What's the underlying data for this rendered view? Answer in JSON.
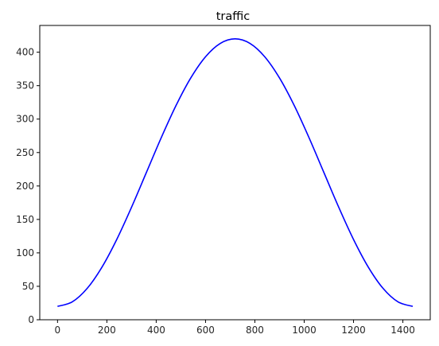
{
  "chart_data": {
    "type": "line",
    "title": "traffic",
    "xlabel": "",
    "ylabel": "",
    "xlim": [
      -72,
      1511
    ],
    "ylim": [
      0,
      440
    ],
    "xticks": [
      0,
      200,
      400,
      600,
      800,
      1000,
      1200,
      1400
    ],
    "yticks": [
      0,
      50,
      100,
      150,
      200,
      250,
      300,
      350,
      400
    ],
    "grid": false,
    "series": [
      {
        "color": "#0000ff",
        "x": [
          0,
          60,
          120,
          180,
          240,
          300,
          360,
          420,
          480,
          540,
          600,
          660,
          720,
          780,
          840,
          900,
          960,
          1020,
          1080,
          1140,
          1200,
          1260,
          1320,
          1380,
          1440
        ],
        "y": [
          20,
          26.8,
          46.8,
          78.6,
          120,
          168.2,
          220,
          271.8,
          320,
          361.4,
          393.2,
          413.2,
          420,
          413.2,
          393.2,
          361.4,
          320,
          271.8,
          220,
          168.2,
          120,
          78.6,
          46.8,
          26.8,
          20
        ]
      }
    ]
  }
}
